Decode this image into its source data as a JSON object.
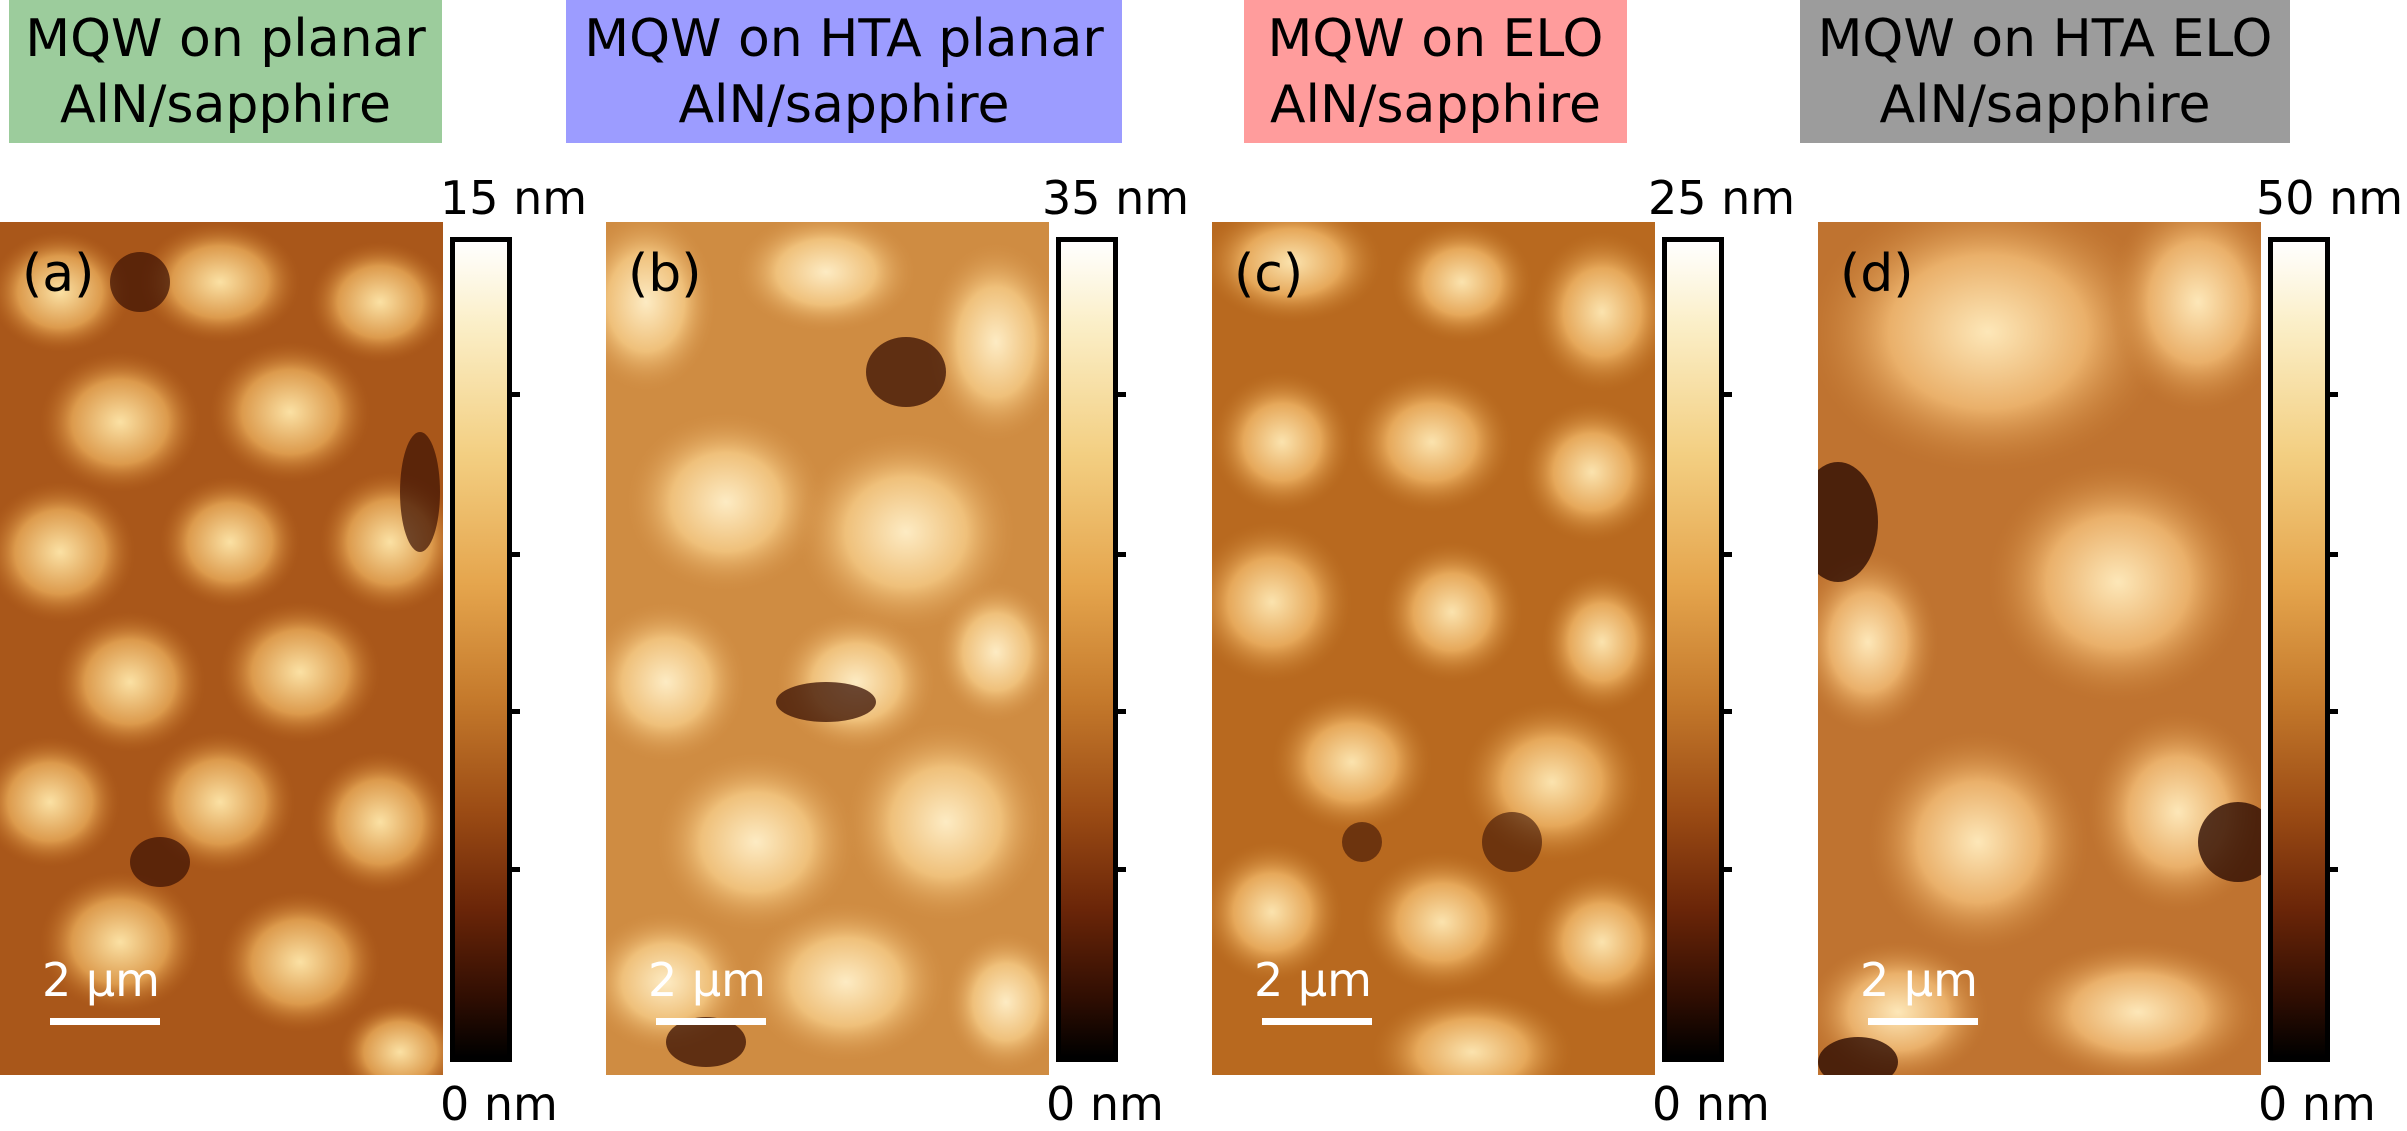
{
  "panels": [
    {
      "title_line1": "MQW on planar",
      "title_line2": "AlN/sapphire",
      "title_color": "#9ccc9c",
      "label": "(a)",
      "scale_bar": "2 μm",
      "colorbar_max": "15 nm",
      "colorbar_min": "0 nm"
    },
    {
      "title_line1": "MQW on HTA planar",
      "title_line2": "AlN/sapphire",
      "title_color": "#9c9cff",
      "label": "(b)",
      "scale_bar": "2 μm",
      "colorbar_max": "35 nm",
      "colorbar_min": "0 nm"
    },
    {
      "title_line1": "MQW on ELO",
      "title_line2": "AlN/sapphire",
      "title_color": "#ff9c9c",
      "label": "(c)",
      "scale_bar": "2 μm",
      "colorbar_max": "25 nm",
      "colorbar_min": "0 nm"
    },
    {
      "title_line1": "MQW on HTA ELO",
      "title_line2": "AlN/sapphire",
      "title_color": "#9c9c9c",
      "label": "(d)",
      "scale_bar": "2 μm",
      "colorbar_max": "50 nm",
      "colorbar_min": "0 nm"
    }
  ]
}
